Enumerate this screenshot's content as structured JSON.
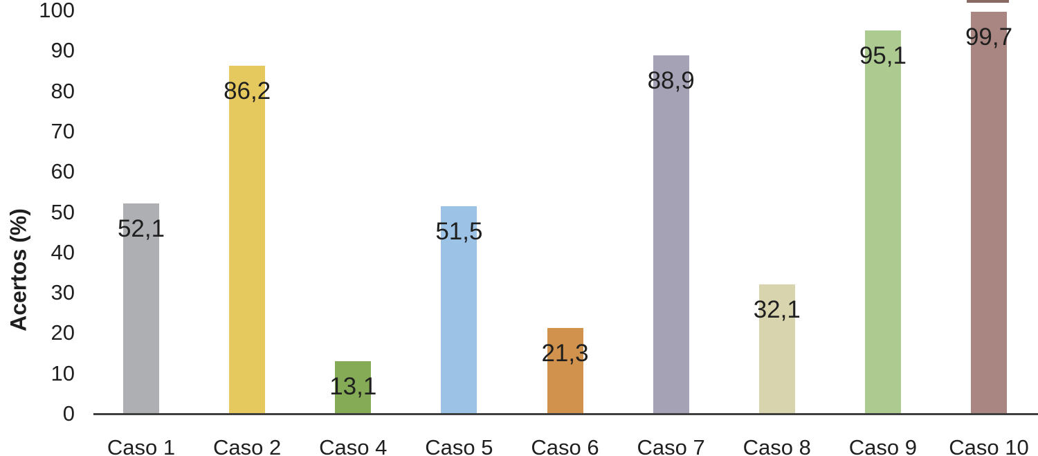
{
  "chart_data": {
    "type": "bar",
    "title": "",
    "xlabel": "",
    "ylabel": "Acertos (%)",
    "categories": [
      "Caso 1",
      "Caso 2",
      "Caso 4",
      "Caso 5",
      "Caso 6",
      "Caso 7",
      "Caso 8",
      "Caso 9",
      "Caso 10"
    ],
    "values": [
      52.1,
      86.2,
      13.1,
      51.5,
      21.3,
      88.9,
      32.1,
      95.1,
      99.7
    ],
    "value_labels": [
      "52,1",
      "86,2",
      "13,1",
      "51,5",
      "21,3",
      "88,9",
      "32,1",
      "95,1",
      "99,7"
    ],
    "bar_colors": [
      "#adafb2",
      "#e5c95e",
      "#86ab57",
      "#9cc3e5",
      "#d0924d",
      "#a5a2b6",
      "#d8d4ae",
      "#adcb90",
      "#a98681"
    ],
    "ylim": [
      0,
      100
    ],
    "yticks": [
      0,
      10,
      20,
      30,
      40,
      50,
      60,
      70,
      80,
      90,
      100
    ],
    "grid": false,
    "legend": null,
    "data_label_position": "inside-end",
    "axis_line_color": "#3f3f3f",
    "text_color": "#1f1f1f",
    "artifact_strip_color": "#8a6a64"
  }
}
